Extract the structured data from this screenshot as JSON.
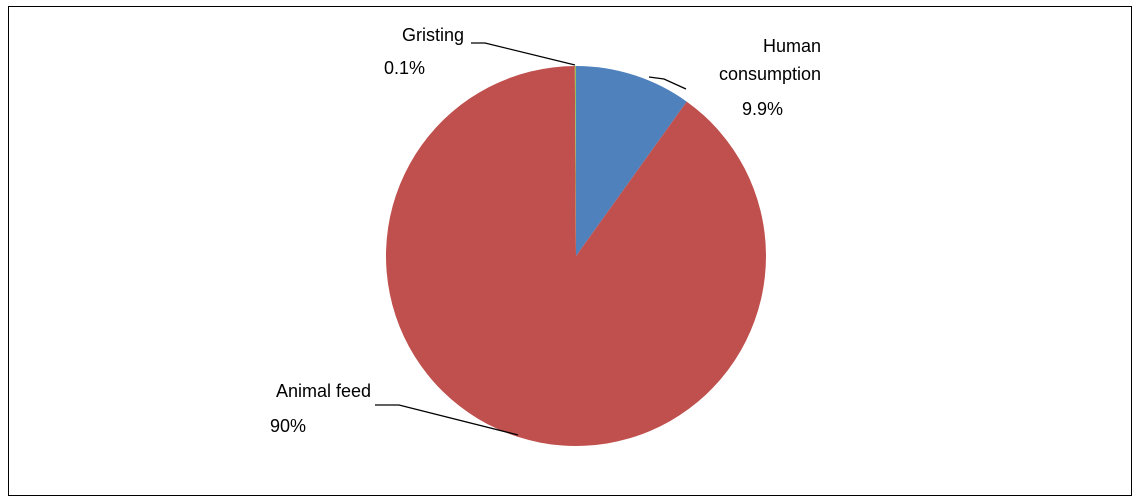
{
  "chart_data": {
    "type": "pie",
    "title": "",
    "slices": [
      {
        "label": "Human consumption",
        "value": 9.9,
        "value_label": "9.9%",
        "color": "#4F81BD"
      },
      {
        "label": "Animal feed",
        "value": 90,
        "value_label": "90%",
        "color": "#C0504D"
      },
      {
        "label": "Gristing",
        "value": 0.1,
        "value_label": "0.1%",
        "color": "#9BBB59"
      }
    ],
    "start_angle": "12 o'clock",
    "direction": "clockwise",
    "legend": "none",
    "data_labels": "outside with leader lines"
  }
}
